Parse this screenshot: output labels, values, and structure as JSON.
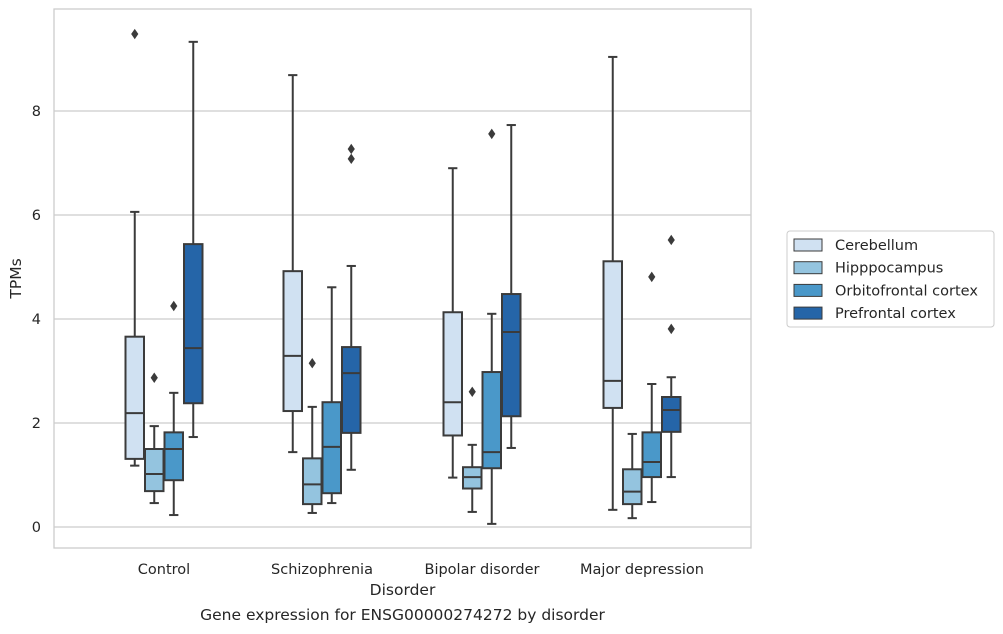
{
  "chart_data": {
    "type": "box",
    "caption": "Gene expression for ENSG00000274272 by disorder",
    "xlabel": "Disorder",
    "ylabel": "TPMs",
    "categories": [
      "Control",
      "Schizophrenia",
      "Bipolar disorder",
      "Major depression"
    ],
    "ylim": [
      -0.4,
      9.9
    ],
    "yticks": [
      "0",
      "2",
      "4",
      "6",
      "8"
    ],
    "grid": "horizontal",
    "legend_position": "right",
    "series": [
      {
        "name": "Cerebellum",
        "color": "#d0e1f2",
        "boxes": [
          {
            "whislo": 1.18,
            "q1": 1.31,
            "med": 2.19,
            "q3": 3.66,
            "whishi": 6.06,
            "fliers": [
              9.48
            ]
          },
          {
            "whislo": 1.44,
            "q1": 2.23,
            "med": 3.29,
            "q3": 4.92,
            "whishi": 8.69,
            "fliers": []
          },
          {
            "whislo": 0.95,
            "q1": 1.76,
            "med": 2.4,
            "q3": 4.13,
            "whishi": 6.9,
            "fliers": []
          },
          {
            "whislo": 0.33,
            "q1": 2.29,
            "med": 2.81,
            "q3": 5.11,
            "whishi": 9.04,
            "fliers": []
          }
        ]
      },
      {
        "name": "Hipppocampus",
        "color": "#94c4df",
        "boxes": [
          {
            "whislo": 0.46,
            "q1": 0.69,
            "med": 1.02,
            "q3": 1.5,
            "whishi": 1.94,
            "fliers": [
              2.87
            ]
          },
          {
            "whislo": 0.27,
            "q1": 0.44,
            "med": 0.82,
            "q3": 1.32,
            "whishi": 2.31,
            "fliers": [
              3.15
            ]
          },
          {
            "whislo": 0.29,
            "q1": 0.74,
            "med": 0.96,
            "q3": 1.15,
            "whishi": 1.58,
            "fliers": [
              2.6
            ]
          },
          {
            "whislo": 0.17,
            "q1": 0.44,
            "med": 0.68,
            "q3": 1.11,
            "whishi": 1.79,
            "fliers": []
          }
        ]
      },
      {
        "name": "Orbitofrontal cortex",
        "color": "#4a98c9",
        "boxes": [
          {
            "whislo": 0.23,
            "q1": 0.9,
            "med": 1.5,
            "q3": 1.82,
            "whishi": 2.58,
            "fliers": [
              4.25
            ]
          },
          {
            "whislo": 0.46,
            "q1": 0.65,
            "med": 1.54,
            "q3": 2.4,
            "whishi": 4.61,
            "fliers": []
          },
          {
            "whislo": 0.06,
            "q1": 1.13,
            "med": 1.44,
            "q3": 2.98,
            "whishi": 4.1,
            "fliers": [
              7.56
            ]
          },
          {
            "whislo": 0.48,
            "q1": 0.96,
            "med": 1.25,
            "q3": 1.82,
            "whishi": 2.75,
            "fliers": [
              4.81
            ]
          }
        ]
      },
      {
        "name": "Prefrontal cortex",
        "color": "#2565a8",
        "boxes": [
          {
            "whislo": 1.73,
            "q1": 2.38,
            "med": 3.44,
            "q3": 5.44,
            "whishi": 9.33,
            "fliers": []
          },
          {
            "whislo": 1.1,
            "q1": 1.81,
            "med": 2.96,
            "q3": 3.46,
            "whishi": 5.02,
            "fliers": [
              7.08,
              7.27
            ]
          },
          {
            "whislo": 1.52,
            "q1": 2.13,
            "med": 3.75,
            "q3": 4.48,
            "whishi": 7.73,
            "fliers": []
          },
          {
            "whislo": 0.96,
            "q1": 1.83,
            "med": 2.25,
            "q3": 2.5,
            "whishi": 2.88,
            "fliers": [
              3.81,
              5.52
            ]
          }
        ]
      }
    ]
  }
}
